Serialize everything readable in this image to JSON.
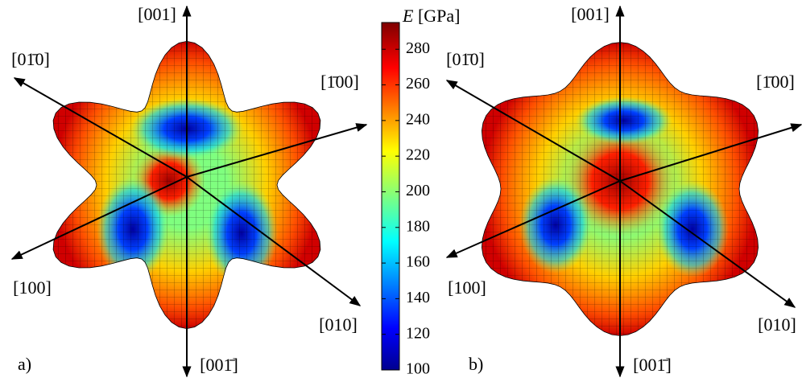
{
  "chart_data": {
    "type": "surface",
    "colorbar": {
      "label_symbol": "E",
      "label_unit": "[GPa]",
      "lim": [
        100,
        295
      ],
      "ticks": [
        100,
        120,
        140,
        160,
        180,
        200,
        220,
        240,
        260,
        280
      ]
    },
    "panels": [
      {
        "label": "a)",
        "axes": [
          "[001]",
          "[01̄0]",
          "[1̄00]",
          "[100]",
          "[010]",
          "[001̄]"
        ]
      },
      {
        "label": "b)",
        "axes": [
          "[001]",
          "[01̄0]",
          "[1̄00]",
          "[100]",
          "[010]",
          "[001̄]"
        ]
      }
    ]
  }
}
